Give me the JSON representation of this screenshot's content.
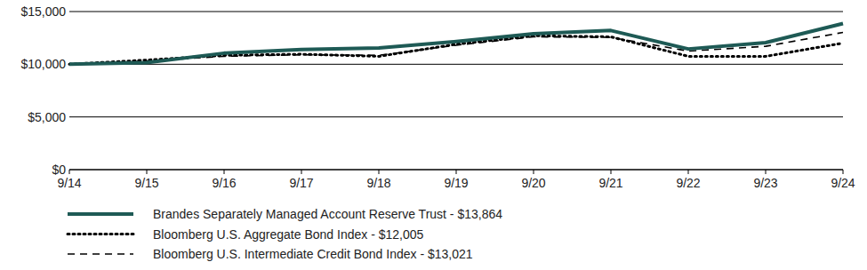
{
  "chart_data": {
    "type": "line",
    "categories": [
      "9/14",
      "9/15",
      "9/16",
      "9/17",
      "9/18",
      "9/19",
      "9/20",
      "9/21",
      "9/22",
      "9/23",
      "9/24"
    ],
    "series": [
      {
        "name": "Brandes Separately Managed Account Reserve Trust - $13,864",
        "color": "#1e5a55",
        "line_style": "solid",
        "values": [
          10000,
          10150,
          11050,
          11400,
          11550,
          12150,
          12900,
          13200,
          11450,
          12050,
          13864
        ]
      },
      {
        "name": "Bloomberg U.S. Aggregate Bond Index - $12,005",
        "color": "#000000",
        "line_style": "dotted",
        "values": [
          10000,
          10400,
          10850,
          10950,
          10750,
          11900,
          12700,
          12600,
          10750,
          10750,
          12005
        ]
      },
      {
        "name": "Bloomberg U.S. Intermediate Credit Bond Index - $13,021",
        "color": "#000000",
        "line_style": "dashed",
        "values": [
          10000,
          10300,
          10750,
          10900,
          10850,
          11800,
          12600,
          12550,
          11250,
          11700,
          13021
        ]
      }
    ],
    "ylim": [
      0,
      15000
    ],
    "yticks": [
      {
        "value": 0,
        "label": "$0"
      },
      {
        "value": 5000,
        "label": "$5,000"
      },
      {
        "value": 10000,
        "label": "$10,000"
      },
      {
        "value": 15000,
        "label": "$15,000"
      }
    ],
    "grid": true,
    "legend": "bottom"
  }
}
